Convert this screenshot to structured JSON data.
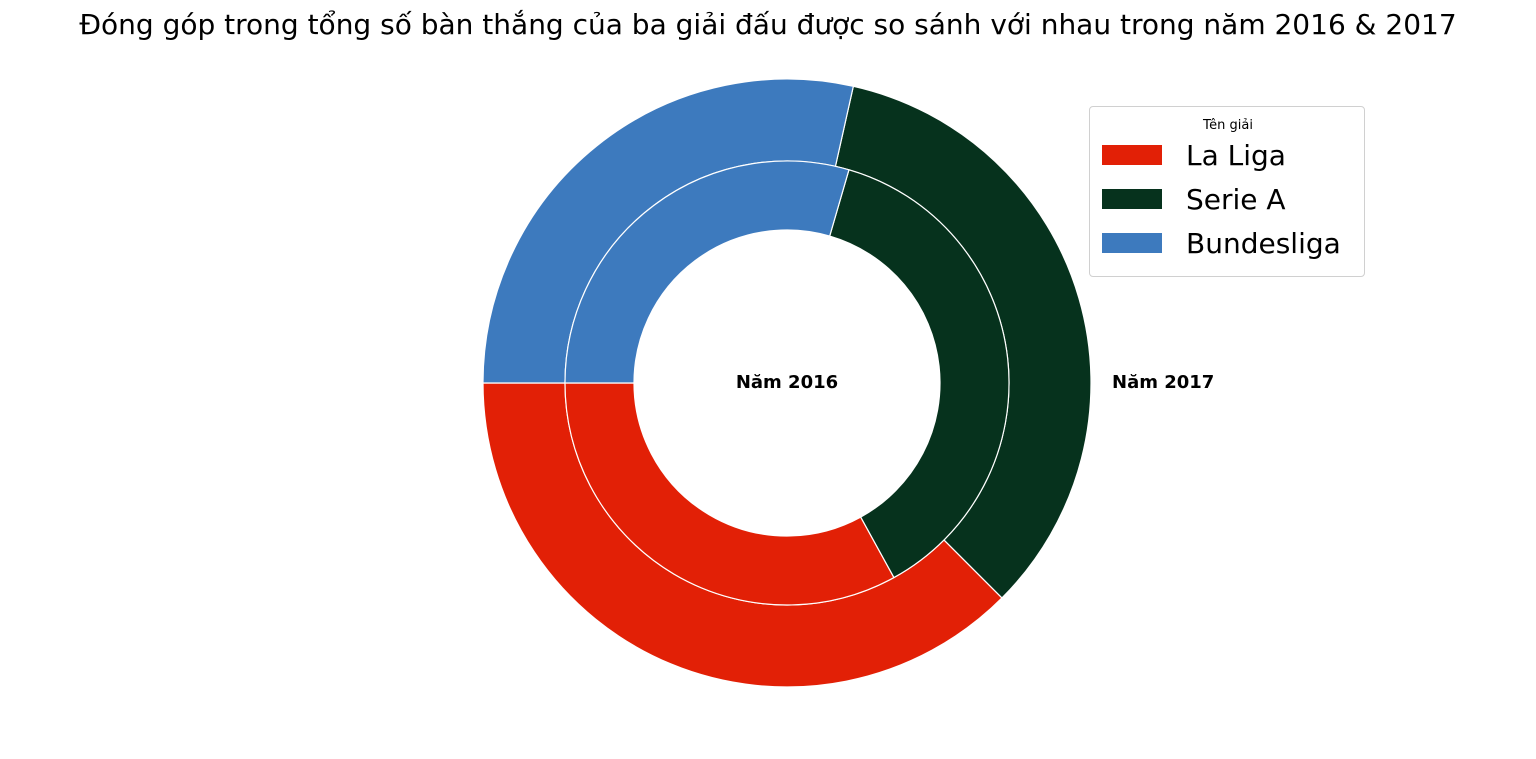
{
  "chart_data": {
    "type": "pie",
    "variant": "nested-donut",
    "title": "Đóng góp trong tổng số bàn thắng của ba giải đấu được so sánh với nhau trong năm 2016 & 2017",
    "categories": [
      "La Liga",
      "Serie A",
      "Bundesliga"
    ],
    "colors": [
      "#e22006",
      "#06321d",
      "#3d7abe"
    ],
    "start_angle_deg": 180,
    "direction": "counterclockwise",
    "series": [
      {
        "name": "Năm 2017",
        "ring": "outer",
        "values": [
          37.5,
          34.0,
          28.5
        ]
      },
      {
        "name": "Năm 2016",
        "ring": "inner",
        "values": [
          33.0,
          37.5,
          29.5
        ]
      }
    ],
    "legend": {
      "title": "Tên giải",
      "placement": "upper-right"
    }
  }
}
